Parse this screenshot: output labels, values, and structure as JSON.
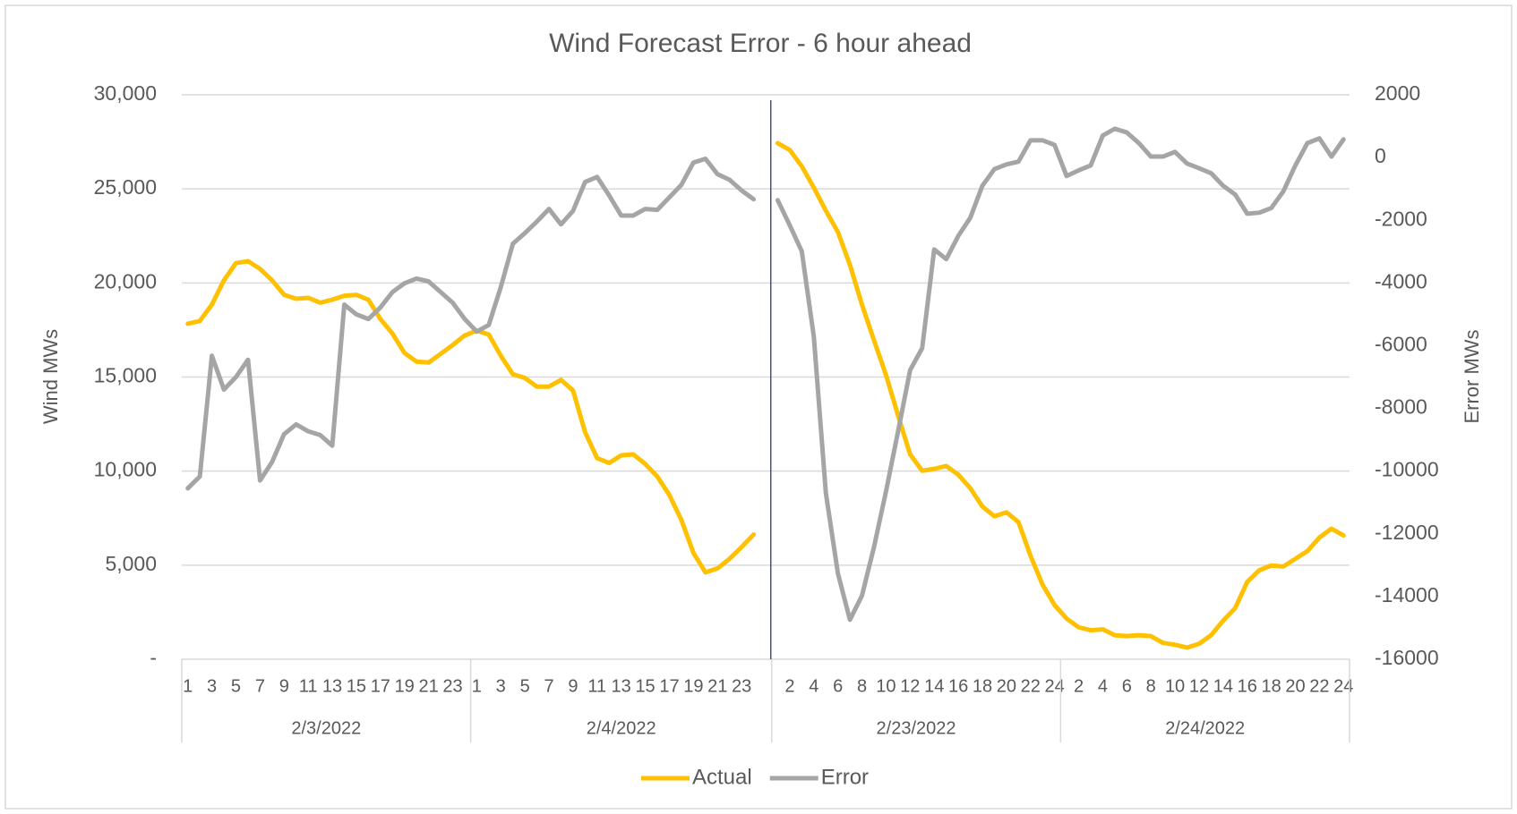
{
  "chart_data": {
    "type": "line",
    "title": "Wind Forecast Error - 6 hour ahead",
    "y_label": "Wind MWs",
    "y2_label": "Error MWs",
    "category_groups": [
      {
        "label": "2/3/2022",
        "categories": [
          "1",
          null,
          "3",
          null,
          "5",
          null,
          "7",
          null,
          "9",
          null,
          "11",
          null,
          "13",
          null,
          "15",
          null,
          "17",
          null,
          "19",
          null,
          "21",
          null,
          "23",
          null
        ]
      },
      {
        "label": "2/4/2022",
        "categories": [
          "1",
          null,
          "3",
          null,
          "5",
          null,
          "7",
          null,
          "9",
          null,
          "11",
          null,
          "13",
          null,
          "15",
          null,
          "17",
          null,
          "19",
          null,
          "21",
          null,
          "23",
          null,
          null
        ]
      },
      {
        "label": "2/23/2022",
        "categories": [
          null,
          "2",
          null,
          "4",
          null,
          "6",
          null,
          "8",
          null,
          "10",
          null,
          "12",
          null,
          "14",
          null,
          "16",
          null,
          "18",
          null,
          "20",
          null,
          "22",
          null,
          "24"
        ]
      },
      {
        "label": "2/24/2022",
        "categories": [
          null,
          "2",
          null,
          "4",
          null,
          "6",
          null,
          "8",
          null,
          "10",
          null,
          "12",
          null,
          "14",
          null,
          "16",
          null,
          "18",
          null,
          "20",
          null,
          "22",
          null,
          "24"
        ]
      }
    ],
    "series": [
      {
        "name": "Actual",
        "color": "#ffc000",
        "axis": "y",
        "values": [
          17830,
          17980,
          18850,
          20140,
          21060,
          21160,
          20750,
          20140,
          19370,
          19160,
          19210,
          18950,
          19110,
          19320,
          19370,
          19110,
          18080,
          17310,
          16280,
          15820,
          15770,
          16230,
          16700,
          17210,
          17470,
          17260,
          16130,
          15150,
          14950,
          14490,
          14490,
          14850,
          14280,
          12070,
          10690,
          10430,
          10840,
          10890,
          10380,
          9710,
          8730,
          7400,
          5650,
          4620,
          4830,
          5340,
          5960,
          6630,
          null,
          27430,
          27070,
          26200,
          25070,
          23840,
          22710,
          20960,
          18850,
          16950,
          15100,
          12950,
          10890,
          10020,
          10120,
          10270,
          9810,
          9090,
          8120,
          7600,
          7810,
          7290,
          5500,
          3960,
          2880,
          2160,
          1700,
          1540,
          1590,
          1280,
          1230,
          1280,
          1230,
          870,
          770,
          620,
          820,
          1280,
          2050,
          2720,
          4110,
          4730,
          4980,
          4930,
          5340,
          5750,
          6470,
          6940,
          6580
        ]
      },
      {
        "name": "Error",
        "color": "#a5a5a5",
        "axis": "y2",
        "values": [
          -10550,
          -10170,
          -6320,
          -7400,
          -7000,
          -6450,
          -10300,
          -9710,
          -8820,
          -8510,
          -8730,
          -8850,
          -9190,
          -4690,
          -5000,
          -5150,
          -4780,
          -4290,
          -4010,
          -3860,
          -3950,
          -4290,
          -4630,
          -5150,
          -5550,
          -5340,
          -4130,
          -2750,
          -2410,
          -2040,
          -1640,
          -2130,
          -1700,
          -780,
          -620,
          -1210,
          -1850,
          -1850,
          -1640,
          -1670,
          -1270,
          -870,
          -160,
          -40,
          -530,
          -710,
          -1050,
          -1330,
          null,
          -1360,
          -2160,
          -2990,
          -5710,
          -10700,
          -13260,
          -14740,
          -13970,
          -12420,
          -10640,
          -8730,
          -6780,
          -6080,
          -2930,
          -3240,
          -2500,
          -1920,
          -900,
          -370,
          -220,
          -130,
          550,
          550,
          400,
          -590,
          -410,
          -250,
          700,
          920,
          800,
          460,
          30,
          30,
          180,
          -190,
          -340,
          -500,
          -900,
          -1180,
          -1790,
          -1760,
          -1610,
          -1080,
          -250,
          460,
          610,
          30,
          580
        ]
      }
    ],
    "ylim": [
      0,
      30000
    ],
    "yticks": [
      {
        "value": 0,
        "label": "-"
      },
      {
        "value": 5000,
        "label": "5,000"
      },
      {
        "value": 10000,
        "label": "10,000"
      },
      {
        "value": 15000,
        "label": "15,000"
      },
      {
        "value": 20000,
        "label": "20,000"
      },
      {
        "value": 25000,
        "label": "25,000"
      },
      {
        "value": 30000,
        "label": "30,000"
      }
    ],
    "y2lim": [
      -16000,
      2000
    ],
    "y2ticks": [
      -16000,
      -14000,
      -12000,
      -10000,
      -8000,
      -6000,
      -4000,
      -2000,
      0,
      2000
    ],
    "grid": true,
    "legend": "bottom"
  }
}
